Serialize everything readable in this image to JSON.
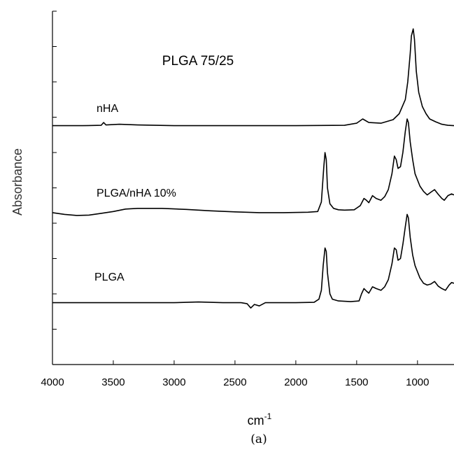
{
  "chart_data": {
    "type": "line",
    "title": "PLGA 75/25",
    "xlabel": "cm",
    "xlabel_superscript": "-1",
    "ylabel": "Absorbance",
    "panel_label": "(a)",
    "xlim": [
      4000,
      700
    ],
    "ylim": [
      0,
      100
    ],
    "x_reversed": true,
    "y_ticks_labeled": false,
    "grid": false,
    "x_ticks": [
      4000,
      3500,
      3000,
      2500,
      2000,
      1500,
      1000
    ],
    "x_tick_labels": [
      "4000",
      "3500",
      "3000",
      "2500",
      "2000",
      "1500",
      "1000"
    ],
    "series": [
      {
        "name": "nHA",
        "values": [
          [
            4000,
            67.6
          ],
          [
            3750,
            67.6
          ],
          [
            3600,
            67.7
          ],
          [
            3580,
            68.5
          ],
          [
            3560,
            67.8
          ],
          [
            3450,
            68.0
          ],
          [
            3300,
            67.8
          ],
          [
            3000,
            67.6
          ],
          [
            2500,
            67.6
          ],
          [
            2000,
            67.6
          ],
          [
            1600,
            67.7
          ],
          [
            1500,
            68.3
          ],
          [
            1450,
            69.5
          ],
          [
            1400,
            68.5
          ],
          [
            1300,
            68.3
          ],
          [
            1200,
            69.3
          ],
          [
            1150,
            71.0
          ],
          [
            1100,
            75.0
          ],
          [
            1080,
            80.0
          ],
          [
            1060,
            88.0
          ],
          [
            1050,
            93.0
          ],
          [
            1035,
            95.0
          ],
          [
            1025,
            92.0
          ],
          [
            1010,
            83.0
          ],
          [
            990,
            77.0
          ],
          [
            960,
            73.0
          ],
          [
            930,
            71.0
          ],
          [
            900,
            69.5
          ],
          [
            850,
            68.7
          ],
          [
            800,
            68.0
          ],
          [
            750,
            67.7
          ],
          [
            700,
            67.6
          ]
        ]
      },
      {
        "name": "PLGA/nHA 10%",
        "values": [
          [
            4000,
            43.0
          ],
          [
            3900,
            42.5
          ],
          [
            3800,
            42.2
          ],
          [
            3700,
            42.3
          ],
          [
            3600,
            42.8
          ],
          [
            3500,
            43.3
          ],
          [
            3400,
            44.0
          ],
          [
            3300,
            44.2
          ],
          [
            3100,
            44.2
          ],
          [
            2900,
            43.9
          ],
          [
            2700,
            43.5
          ],
          [
            2500,
            43.2
          ],
          [
            2300,
            43.0
          ],
          [
            2100,
            43.0
          ],
          [
            1900,
            43.1
          ],
          [
            1820,
            43.3
          ],
          [
            1790,
            46.0
          ],
          [
            1770,
            56.0
          ],
          [
            1760,
            60.0
          ],
          [
            1750,
            58.0
          ],
          [
            1740,
            50.0
          ],
          [
            1720,
            45.5
          ],
          [
            1690,
            44.2
          ],
          [
            1650,
            43.8
          ],
          [
            1600,
            43.7
          ],
          [
            1520,
            43.8
          ],
          [
            1470,
            45.0
          ],
          [
            1440,
            47.0
          ],
          [
            1420,
            46.5
          ],
          [
            1400,
            45.8
          ],
          [
            1370,
            47.8
          ],
          [
            1340,
            47.0
          ],
          [
            1300,
            46.5
          ],
          [
            1270,
            47.5
          ],
          [
            1240,
            49.5
          ],
          [
            1210,
            54.0
          ],
          [
            1190,
            59.0
          ],
          [
            1175,
            58.0
          ],
          [
            1160,
            55.5
          ],
          [
            1140,
            56.0
          ],
          [
            1120,
            60.0
          ],
          [
            1100,
            66.0
          ],
          [
            1085,
            69.5
          ],
          [
            1075,
            68.5
          ],
          [
            1060,
            63.0
          ],
          [
            1040,
            58.0
          ],
          [
            1020,
            54.0
          ],
          [
            980,
            50.5
          ],
          [
            950,
            49.0
          ],
          [
            920,
            48.0
          ],
          [
            890,
            48.8
          ],
          [
            860,
            49.5
          ],
          [
            830,
            48.2
          ],
          [
            800,
            47.0
          ],
          [
            780,
            46.5
          ],
          [
            750,
            47.8
          ],
          [
            720,
            48.3
          ],
          [
            700,
            48.0
          ]
        ]
      },
      {
        "name": "PLGA",
        "values": [
          [
            4000,
            17.5
          ],
          [
            3500,
            17.5
          ],
          [
            3000,
            17.5
          ],
          [
            2800,
            17.7
          ],
          [
            2600,
            17.5
          ],
          [
            2450,
            17.5
          ],
          [
            2400,
            17.2
          ],
          [
            2370,
            16.0
          ],
          [
            2340,
            17.0
          ],
          [
            2300,
            16.6
          ],
          [
            2250,
            17.5
          ],
          [
            2000,
            17.5
          ],
          [
            1850,
            17.6
          ],
          [
            1810,
            18.5
          ],
          [
            1790,
            21.0
          ],
          [
            1775,
            28.0
          ],
          [
            1760,
            33.0
          ],
          [
            1750,
            32.0
          ],
          [
            1740,
            26.0
          ],
          [
            1720,
            20.0
          ],
          [
            1700,
            18.5
          ],
          [
            1650,
            18.0
          ],
          [
            1550,
            17.8
          ],
          [
            1480,
            18.0
          ],
          [
            1460,
            20.0
          ],
          [
            1440,
            21.5
          ],
          [
            1420,
            20.8
          ],
          [
            1400,
            20.2
          ],
          [
            1370,
            22.0
          ],
          [
            1340,
            21.5
          ],
          [
            1300,
            21.0
          ],
          [
            1270,
            22.0
          ],
          [
            1240,
            24.0
          ],
          [
            1210,
            28.5
          ],
          [
            1190,
            33.0
          ],
          [
            1175,
            32.5
          ],
          [
            1160,
            29.5
          ],
          [
            1140,
            30.0
          ],
          [
            1120,
            34.0
          ],
          [
            1100,
            39.0
          ],
          [
            1085,
            42.5
          ],
          [
            1075,
            41.5
          ],
          [
            1060,
            36.0
          ],
          [
            1040,
            31.0
          ],
          [
            1020,
            28.0
          ],
          [
            980,
            24.5
          ],
          [
            950,
            23.0
          ],
          [
            920,
            22.5
          ],
          [
            890,
            22.8
          ],
          [
            860,
            23.5
          ],
          [
            830,
            22.2
          ],
          [
            800,
            21.5
          ],
          [
            770,
            21.0
          ],
          [
            740,
            22.5
          ],
          [
            720,
            23.2
          ],
          [
            700,
            23.0
          ]
        ]
      }
    ]
  }
}
